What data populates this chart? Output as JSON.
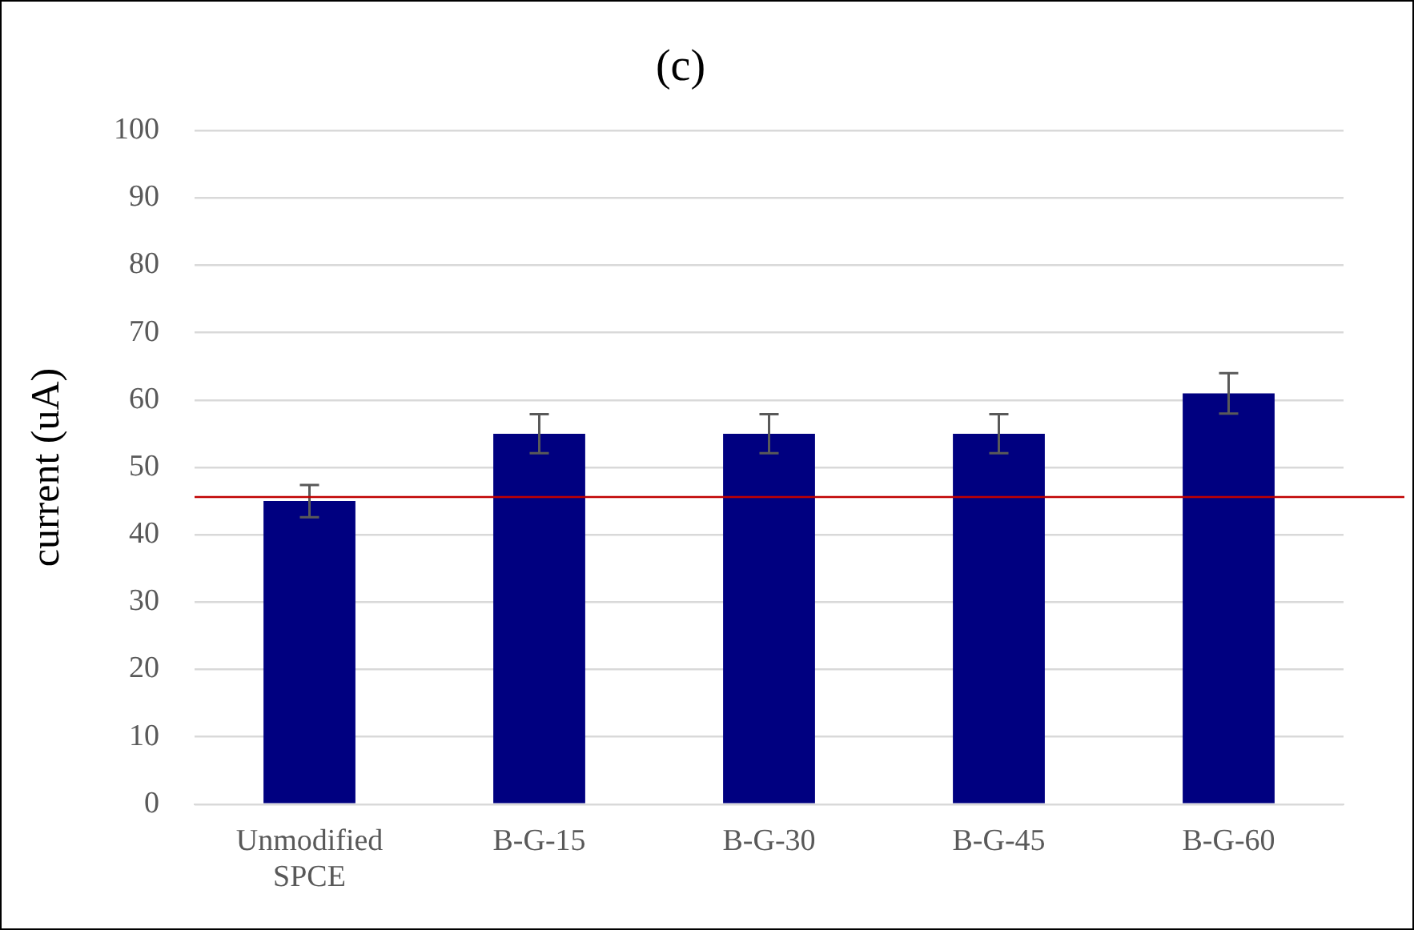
{
  "chart_data": {
    "type": "bar",
    "title": "(c)",
    "ylabel": "current (uA)",
    "categories": [
      "Unmodified SPCE",
      "B-G-15",
      "B-G-30",
      "B-G-45",
      "B-G-60"
    ],
    "values": [
      45,
      55,
      55,
      55,
      61
    ],
    "errors": [
      2.4,
      2.9,
      2.9,
      2.9,
      3
    ],
    "color": "#000080",
    "ylim": [
      0,
      100
    ],
    "yticks": [
      0,
      10,
      20,
      30,
      40,
      50,
      60,
      70,
      80,
      90,
      100
    ],
    "grid": "y",
    "legend": false,
    "ref_lines": [
      {
        "axis": "y",
        "value": 45.6,
        "color": "#c00000"
      }
    ]
  }
}
